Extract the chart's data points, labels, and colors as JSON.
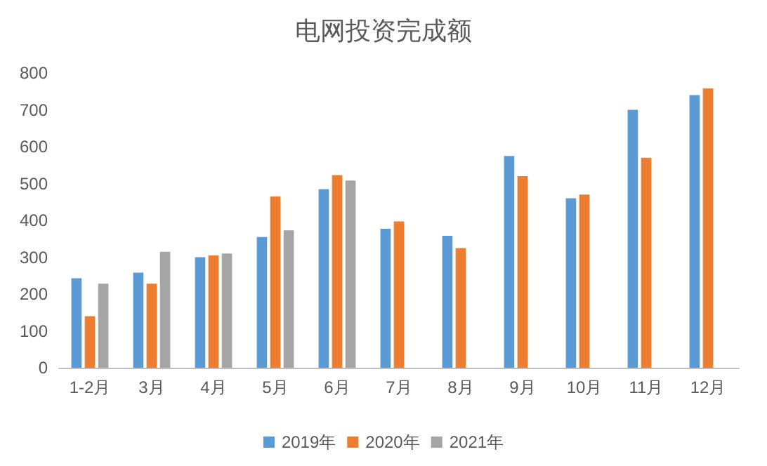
{
  "chart_data": {
    "type": "bar",
    "title": "电网投资完成额",
    "categories": [
      "1-2月",
      "3月",
      "4月",
      "5月",
      "6月",
      "7月",
      "8月",
      "9月",
      "10月",
      "11月",
      "12月"
    ],
    "series": [
      {
        "name": "2019年",
        "color": "#5b9bd5",
        "values": [
          243,
          258,
          300,
          355,
          485,
          377,
          358,
          575,
          460,
          700,
          740
        ]
      },
      {
        "name": "2020年",
        "color": "#ed7d31",
        "values": [
          140,
          228,
          305,
          465,
          523,
          397,
          325,
          520,
          470,
          570,
          758
        ]
      },
      {
        "name": "2021年",
        "color": "#a5a5a5",
        "values": [
          228,
          315,
          310,
          373,
          508,
          null,
          null,
          null,
          null,
          null,
          null
        ]
      }
    ],
    "ylim": [
      0,
      800
    ],
    "yticks": [
      0,
      100,
      200,
      300,
      400,
      500,
      600,
      700,
      800
    ],
    "grid": false,
    "legend": "bottom"
  }
}
